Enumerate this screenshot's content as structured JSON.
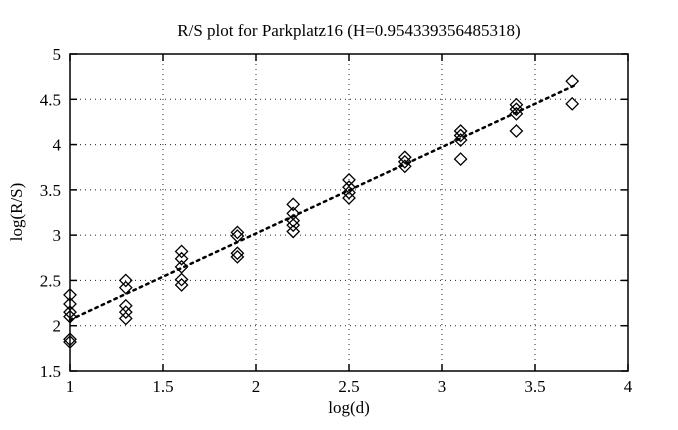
{
  "chart_data": {
    "type": "scatter",
    "title": "R/S plot for Parkplatz16 (H=0.954339356485318)",
    "xlabel": "log(d)",
    "ylabel": "log(R/S)",
    "xlim": [
      1,
      4
    ],
    "ylim": [
      1.5,
      5
    ],
    "xticks": [
      1,
      1.5,
      2,
      2.5,
      3,
      3.5,
      4
    ],
    "yticks": [
      1.5,
      2,
      2.5,
      3,
      3.5,
      4,
      4.5,
      5
    ],
    "grid": true,
    "legend": "none",
    "marker": "open-diamond",
    "marker_color": "#000000",
    "background_color": "#ffffff",
    "clusters": [
      {
        "log_d": 1.0,
        "log_RS": [
          2.34,
          2.24,
          2.15,
          2.1,
          1.85,
          1.82
        ]
      },
      {
        "log_d": 1.3,
        "log_RS": [
          2.5,
          2.42,
          2.22,
          2.15,
          2.08
        ]
      },
      {
        "log_d": 1.6,
        "log_RS": [
          2.82,
          2.74,
          2.65,
          2.51,
          2.45
        ]
      },
      {
        "log_d": 1.9,
        "log_RS": [
          3.03,
          2.99,
          2.8,
          2.76
        ]
      },
      {
        "log_d": 2.2,
        "log_RS": [
          3.34,
          3.24,
          3.16,
          3.11,
          3.04
        ]
      },
      {
        "log_d": 2.5,
        "log_RS": [
          3.61,
          3.53,
          3.47,
          3.41
        ]
      },
      {
        "log_d": 2.8,
        "log_RS": [
          3.86,
          3.81,
          3.76
        ]
      },
      {
        "log_d": 3.1,
        "log_RS": [
          4.15,
          4.1,
          4.05,
          3.84
        ]
      },
      {
        "log_d": 3.4,
        "log_RS": [
          4.44,
          4.39,
          4.34,
          4.15
        ]
      },
      {
        "log_d": 3.7,
        "log_RS": [
          4.7,
          4.45
        ]
      }
    ],
    "fit_line": {
      "style": "dotted",
      "color": "#000000",
      "H": 0.954339356485318,
      "slope": 0.954339356485318,
      "intercept": 1.11,
      "x_start": 1.0,
      "x_end": 3.73
    }
  }
}
